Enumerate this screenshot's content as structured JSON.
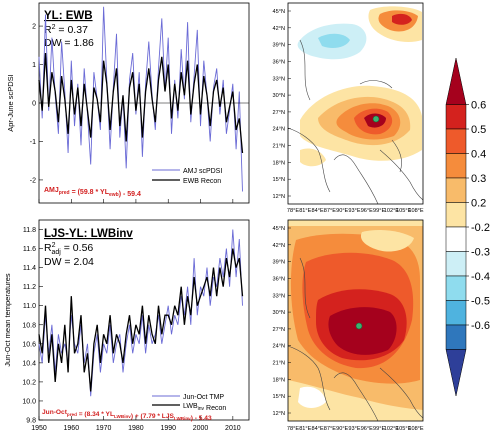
{
  "panels": [
    {
      "id": "top",
      "title_main": "YL: EWB",
      "r2_label": "R",
      "r2_sup": "2",
      "r2_value": " = 0.37",
      "dw_text": "DW = 1.86",
      "ylabel": "Apr-June scPDSI",
      "yticks": [
        "-2",
        "-1",
        "0",
        "1",
        "2"
      ],
      "legend": [
        "AMJ scPDSI",
        "EWB Recon"
      ],
      "equation_parts": [
        {
          "t": "AMJ",
          "s": ""
        },
        {
          "t": "pred",
          "s": "sub"
        },
        {
          "t": " = (59.8 * YL",
          "s": ""
        },
        {
          "t": "ewb",
          "s": "sub"
        },
        {
          "t": ") - 59.4",
          "s": ""
        }
      ]
    },
    {
      "id": "bottom",
      "title_main": "LJS-YL: LWBinv",
      "r2_label": "R",
      "r2_sup": "2",
      "r2_sub": "adj",
      "r2_value": " = 0.56",
      "dw_text": "DW = 2.04",
      "ylabel": "Jun-Oct mean temperatures",
      "yticks": [
        "9.8",
        "10.0",
        "10.2",
        "10.4",
        "10.6",
        "10.8",
        "11.0",
        "11.2",
        "11.4",
        "11.6",
        "11.8"
      ],
      "xticks": [
        "1950",
        "1960",
        "1970",
        "1980",
        "1990",
        "2000",
        "2010"
      ],
      "legend_a": "Jun-Oct TMP",
      "legend_b_parts": [
        {
          "t": "LWB",
          "s": ""
        },
        {
          "t": "inv",
          "s": "sub"
        },
        {
          "t": " Recon",
          "s": ""
        }
      ],
      "equation_parts": [
        {
          "t": "Jun-Oct",
          "s": ""
        },
        {
          "t": "pred",
          "s": "sub"
        },
        {
          "t": " = (8.34 * YL",
          "s": ""
        },
        {
          "t": "LWBinv",
          "s": "sub"
        },
        {
          "t": ") + (7.79 * LJS",
          "s": ""
        },
        {
          "t": "LWBinv",
          "s": "sub"
        },
        {
          "t": ") - 5.43",
          "s": ""
        }
      ]
    }
  ],
  "maps": {
    "lat_labels": [
      "45°N",
      "42°N",
      "39°N",
      "36°N",
      "33°N",
      "30°N",
      "27°N",
      "24°N",
      "21°N",
      "18°N",
      "15°N",
      "12°N"
    ],
    "lon_labels": [
      "78°E",
      "81°E",
      "84°E",
      "87°E",
      "90°E",
      "93°E",
      "96°E",
      "99°E",
      "102°E",
      "105°E",
      "108°E"
    ]
  },
  "colorbar": {
    "labels": [
      "0.6",
      "0.5",
      "0.4",
      "0.3",
      "0.2",
      "-0.2",
      "-0.3",
      "-0.4",
      "-0.5",
      "-0.6"
    ],
    "colors": [
      "#a5011d",
      "#d4221e",
      "#ee5a2b",
      "#f58c3c",
      "#f8bb6a",
      "#fde4a4",
      "#ffffff",
      "#cdeff6",
      "#8fdcee",
      "#4fb3df",
      "#2f77bc",
      "#2e3f99"
    ]
  },
  "colors": {
    "observed": "#6b6bd6",
    "recon": "#000000",
    "equation": "#d21f1f",
    "marker": "#3cb371"
  },
  "chart_data": [
    {
      "type": "line",
      "title": "YL: EWB",
      "ylabel": "Apr-June scPDSI",
      "xlim": [
        1950,
        2015
      ],
      "ylim": [
        -2.6,
        2.6
      ],
      "x_start": 1950,
      "series": [
        {
          "name": "AMJ scPDSI",
          "values": [
            1.2,
            -0.4,
            2.3,
            -0.2,
            1.7,
            0.2,
            -0.8,
            1.6,
            0.3,
            -1.3,
            1.1,
            -0.6,
            0.5,
            -1.1,
            0.9,
            -0.3,
            -1.6,
            0.8,
            0.1,
            -0.7,
            2.5,
            0.6,
            -1.2,
            0.4,
            1.8,
            -0.9,
            0.2,
            -1.7,
            0.6,
            1.3,
            -0.3,
            0.8,
            -1.4,
            0.5,
            1.6,
            0.2,
            -0.7,
            0.9,
            2.2,
            0.3,
            1.7,
            -0.8,
            0.6,
            -0.4,
            1.4,
            0.1,
            2.1,
            -0.5,
            0.7,
            1.9,
            -0.6,
            1.1,
            0.2,
            -1.0,
            0.4,
            0.9,
            -0.3,
            0.6,
            -0.8,
            -0.2,
            0.5,
            -1.2,
            0.3,
            -2.3
          ]
        },
        {
          "name": "EWB Recon",
          "values": [
            0.6,
            -0.2,
            1.3,
            -0.1,
            0.8,
            0.3,
            -0.5,
            0.7,
            0.1,
            -0.8,
            0.6,
            -0.3,
            0.4,
            -0.6,
            0.5,
            -0.2,
            -0.9,
            0.4,
            0.1,
            -0.5,
            1.1,
            0.5,
            -0.7,
            0.3,
            0.9,
            -0.6,
            0.2,
            -1.0,
            0.4,
            0.8,
            -0.2,
            0.5,
            -0.9,
            0.3,
            0.9,
            0.1,
            -0.5,
            0.6,
            1.2,
            0.3,
            1.0,
            -0.4,
            0.5,
            -0.2,
            0.8,
            0.2,
            1.1,
            -0.3,
            0.5,
            1.0,
            -0.3,
            0.7,
            0.2,
            -0.6,
            0.3,
            0.6,
            -0.1,
            0.4,
            -0.5,
            -0.1,
            0.3,
            -0.7,
            -0.4,
            -1.3
          ]
        }
      ]
    },
    {
      "type": "line",
      "title": "LJS-YL: LWBinv",
      "ylabel": "Jun-Oct mean temperatures",
      "xlim": [
        1950,
        2015
      ],
      "ylim": [
        9.8,
        11.9
      ],
      "x_start": 1950,
      "series": [
        {
          "name": "Jun-Oct TMP",
          "values": [
            10.6,
            10.4,
            10.9,
            10.5,
            10.8,
            10.3,
            10.7,
            10.5,
            10.6,
            10.4,
            10.9,
            10.6,
            10.5,
            10.8,
            10.4,
            10.6,
            10.05,
            10.5,
            10.7,
            10.3,
            10.6,
            10.5,
            10.8,
            10.4,
            10.6,
            10.7,
            10.3,
            10.6,
            10.8,
            10.5,
            10.7,
            10.6,
            10.9,
            10.5,
            10.8,
            10.6,
            10.7,
            10.9,
            10.6,
            10.8,
            11.0,
            10.7,
            10.9,
            10.8,
            11.1,
            10.9,
            11.2,
            10.8,
            11.5,
            10.9,
            11.2,
            11.1,
            11.4,
            11.0,
            11.3,
            11.2,
            11.5,
            11.3,
            11.6,
            11.2,
            11.8,
            11.3,
            11.7,
            11.0
          ]
        },
        {
          "name": "LWBinv Recon",
          "values": [
            10.7,
            10.5,
            11.0,
            10.4,
            10.7,
            10.2,
            10.6,
            10.4,
            10.8,
            10.3,
            11.1,
            10.5,
            10.6,
            10.9,
            10.3,
            10.5,
            10.1,
            10.6,
            10.8,
            10.4,
            10.7,
            10.6,
            10.9,
            10.5,
            10.7,
            10.6,
            10.4,
            10.7,
            10.9,
            10.6,
            10.8,
            10.7,
            11.0,
            10.6,
            10.9,
            10.7,
            10.6,
            11.0,
            10.7,
            10.9,
            10.9,
            10.8,
            11.0,
            10.9,
            11.2,
            10.8,
            11.1,
            10.9,
            11.3,
            11.0,
            11.1,
            11.2,
            11.3,
            11.1,
            11.4,
            11.1,
            11.4,
            11.2,
            11.5,
            11.3,
            11.6,
            11.4,
            11.5,
            11.1
          ]
        }
      ]
    }
  ]
}
